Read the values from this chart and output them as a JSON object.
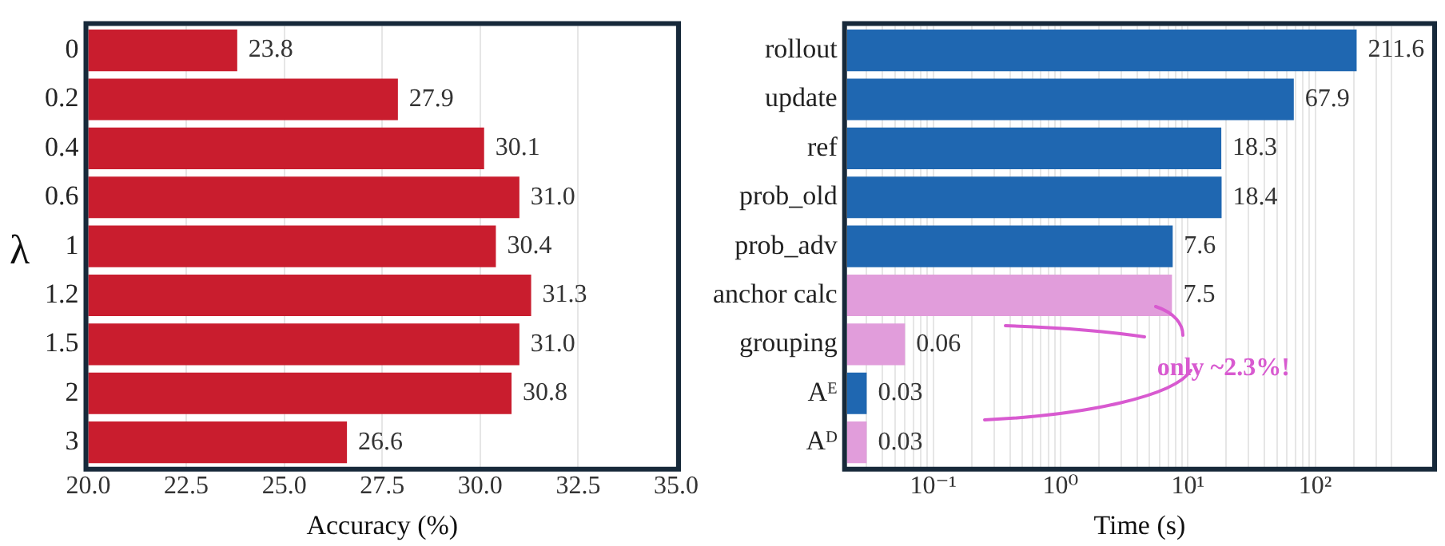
{
  "chart_data": [
    {
      "type": "bar",
      "orientation": "horizontal",
      "categories": [
        "0",
        "0.2",
        "0.4",
        "0.6",
        "1",
        "1.2",
        "1.5",
        "2",
        "3"
      ],
      "values": [
        23.8,
        27.9,
        30.1,
        31.0,
        30.4,
        31.3,
        31.0,
        30.8,
        26.6
      ],
      "color": "#c91d2e",
      "value_labels": [
        "23.8",
        "27.9",
        "30.1",
        "31.0",
        "30.4",
        "31.3",
        "31.0",
        "30.8",
        "26.6"
      ],
      "xlim": [
        20,
        35
      ],
      "xticks": [
        {
          "value": 20,
          "label": "20.0"
        },
        {
          "value": 22.5,
          "label": "22.5"
        },
        {
          "value": 25,
          "label": "25.0"
        },
        {
          "value": 27.5,
          "label": "27.5"
        },
        {
          "value": 30,
          "label": "30.0"
        },
        {
          "value": 32.5,
          "label": "32.5"
        },
        {
          "value": 35,
          "label": "35.0"
        }
      ],
      "xlabel": "Accuracy (%)",
      "ylabel": "λ",
      "grid": "x"
    },
    {
      "type": "bar",
      "orientation": "horizontal",
      "log": "x",
      "categories": [
        "rollout",
        "update",
        "ref",
        "prob_old",
        "prob_adv",
        "anchor calc",
        "grouping",
        "Aᴱ",
        "Aᴰ"
      ],
      "values": [
        211.6,
        67.9,
        18.3,
        18.4,
        7.6,
        7.5,
        0.06,
        0.03,
        0.03
      ],
      "colors": [
        "#1f67b1",
        "#1f67b1",
        "#1f67b1",
        "#1f67b1",
        "#1f67b1",
        "#e19ddb",
        "#e19ddb",
        "#1f67b1",
        "#e19ddb"
      ],
      "value_labels": [
        "211.6",
        "67.9",
        "18.3",
        "18.4",
        "7.6",
        "7.5",
        "0.06",
        "0.03",
        "0.03"
      ],
      "xlim": [
        0.021,
        830
      ],
      "xticks": [
        {
          "value": 0.03,
          "label": null
        },
        {
          "value": 0.04,
          "label": null
        },
        {
          "value": 0.05,
          "label": null
        },
        {
          "value": 0.06,
          "label": null
        },
        {
          "value": 0.07,
          "label": null
        },
        {
          "value": 0.08,
          "label": null
        },
        {
          "value": 0.09,
          "label": null
        },
        {
          "value": 0.1,
          "label": "10⁻¹"
        },
        {
          "value": 0.2,
          "label": null
        },
        {
          "value": 0.3,
          "label": null
        },
        {
          "value": 0.4,
          "label": null
        },
        {
          "value": 0.5,
          "label": null
        },
        {
          "value": 0.6,
          "label": null
        },
        {
          "value": 0.7,
          "label": null
        },
        {
          "value": 0.8,
          "label": null
        },
        {
          "value": 0.9,
          "label": null
        },
        {
          "value": 1,
          "label": "10⁰"
        },
        {
          "value": 2,
          "label": null
        },
        {
          "value": 3,
          "label": null
        },
        {
          "value": 4,
          "label": null
        },
        {
          "value": 5,
          "label": null
        },
        {
          "value": 6,
          "label": null
        },
        {
          "value": 7,
          "label": null
        },
        {
          "value": 8,
          "label": null
        },
        {
          "value": 9,
          "label": null
        },
        {
          "value": 10,
          "label": "10¹"
        },
        {
          "value": 20,
          "label": null
        },
        {
          "value": 30,
          "label": null
        },
        {
          "value": 40,
          "label": null
        },
        {
          "value": 50,
          "label": null
        },
        {
          "value": 60,
          "label": null
        },
        {
          "value": 70,
          "label": null
        },
        {
          "value": 80,
          "label": null
        },
        {
          "value": 90,
          "label": null
        },
        {
          "value": 100,
          "label": "10²"
        },
        {
          "value": 200,
          "label": null
        },
        {
          "value": 300,
          "label": null
        },
        {
          "value": 400,
          "label": null
        }
      ],
      "xlabel": "Time (s)",
      "grid": "x",
      "annotations": [
        "only ~2.3%!"
      ]
    }
  ]
}
